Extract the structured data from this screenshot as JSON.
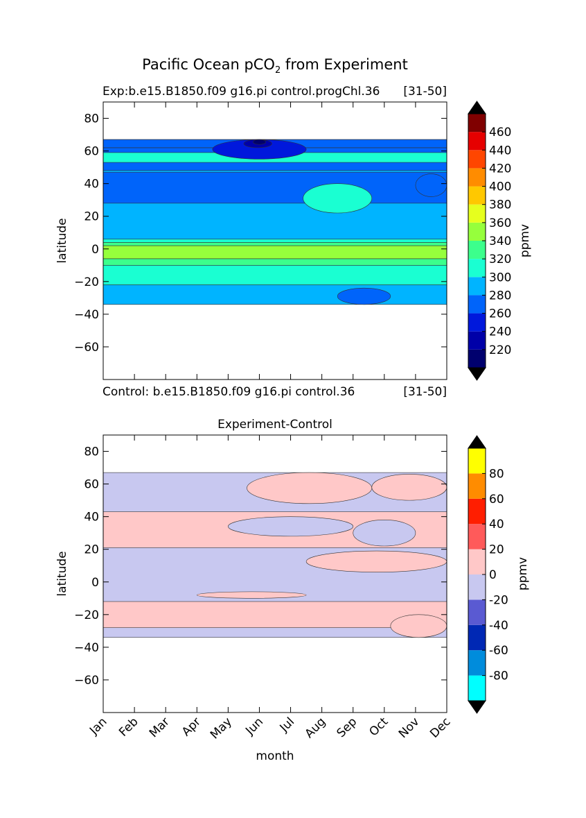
{
  "figure": {
    "title_main": "Pacific Ocean pCO",
    "title_sub": "2",
    "title_tail": " from Experiment"
  },
  "chart_data": [
    {
      "type": "heatmap",
      "id": "experiment",
      "title_left": "Exp:b.e15.B1850.f09 g16.pi control.progChl.36",
      "title_right": "[31-50]",
      "bottom_left": "Control: b.e15.B1850.f09 g16.pi control.36",
      "bottom_right": "[31-50]",
      "xlabel": "",
      "ylabel": "latitude",
      "xlim": [
        0,
        11
      ],
      "ylim": [
        -80,
        90
      ],
      "data_lat_range": [
        -34,
        67
      ],
      "yticks": [
        80,
        60,
        40,
        20,
        0,
        -20,
        -40,
        -60
      ],
      "ytick_labels": [
        "80",
        "60",
        "40",
        "20",
        "0",
        "−20",
        "−40",
        "−60"
      ],
      "colorbar": {
        "label": "ppmv",
        "extend": "both",
        "levels": [
          200,
          220,
          240,
          260,
          280,
          300,
          320,
          340,
          360,
          380,
          400,
          420,
          440,
          460,
          480
        ],
        "colors": [
          "#00006e",
          "#0000a8",
          "#0018dc",
          "#0064fa",
          "#00b4ff",
          "#1affd2",
          "#3cff8c",
          "#96ff3c",
          "#e6ff1e",
          "#ffc800",
          "#ff8c00",
          "#ff4600",
          "#e60000",
          "#800000"
        ],
        "under_color": "#000000",
        "over_color": "#000000",
        "tick_values": [
          220,
          240,
          260,
          280,
          300,
          320,
          340,
          360,
          380,
          400,
          420,
          440,
          460
        ],
        "tick_labels": [
          "220",
          "240",
          "260",
          "280",
          "300",
          "320",
          "340",
          "360",
          "380",
          "400",
          "420",
          "440",
          "460"
        ]
      },
      "bands": [
        {
          "lat_bottom": -34,
          "lat_top": 67,
          "level": 280
        },
        {
          "lat_bottom": 28,
          "lat_top": 47,
          "level": 260
        },
        {
          "lat_bottom": 48,
          "lat_top": 62,
          "level": 260
        },
        {
          "lat_bottom": 53,
          "lat_top": 59,
          "level": 300
        },
        {
          "lat_bottom": 62,
          "lat_top": 67,
          "level": 260
        },
        {
          "lat_bottom": -34,
          "lat_top": -22,
          "level": 280
        },
        {
          "lat_bottom": -22,
          "lat_top": -10,
          "level": 300
        },
        {
          "lat_bottom": -10,
          "lat_top": -6,
          "level": 320
        },
        {
          "lat_bottom": -6,
          "lat_top": 2,
          "level": 340
        },
        {
          "lat_bottom": 2,
          "lat_top": 4,
          "level": 320
        },
        {
          "lat_bottom": 4,
          "lat_top": 6,
          "level": 300
        }
      ],
      "features": [
        {
          "month_start": 3.5,
          "month_end": 6.5,
          "lat_bottom": 55,
          "lat_top": 67,
          "level": 240
        },
        {
          "month_start": 4.5,
          "month_end": 5.4,
          "lat_bottom": 62,
          "lat_top": 67,
          "level": 220
        },
        {
          "month_start": 4.8,
          "month_end": 5.2,
          "lat_bottom": 64,
          "lat_top": 67,
          "level": 200
        },
        {
          "month_start": 6.4,
          "month_end": 8.6,
          "lat_bottom": 22,
          "lat_top": 40,
          "level": 300
        },
        {
          "month_start": 7.5,
          "month_end": 9.2,
          "lat_bottom": -34,
          "lat_top": -24,
          "level": 260
        },
        {
          "month_start": 10.0,
          "month_end": 11.0,
          "lat_bottom": 32,
          "lat_top": 46,
          "level": 260
        }
      ]
    },
    {
      "type": "heatmap",
      "id": "difference",
      "title": "Experiment-Control",
      "xlabel": "month",
      "ylabel": "latitude",
      "xlim": [
        0,
        11
      ],
      "ylim": [
        -80,
        90
      ],
      "data_lat_range": [
        -34,
        67
      ],
      "categories": [
        "Jan",
        "Feb",
        "Mar",
        "Apr",
        "May",
        "Jun",
        "Jul",
        "Aug",
        "Sep",
        "Oct",
        "Nov",
        "Dec"
      ],
      "yticks": [
        80,
        60,
        40,
        20,
        0,
        -20,
        -40,
        -60
      ],
      "ytick_labels": [
        "80",
        "60",
        "40",
        "20",
        "0",
        "−20",
        "−40",
        "−60"
      ],
      "colorbar": {
        "label": "ppmv",
        "extend": "both",
        "levels": [
          -100,
          -80,
          -60,
          -40,
          -20,
          0,
          20,
          40,
          60,
          80,
          100
        ],
        "colors": [
          "#00ffff",
          "#008cdc",
          "#0028b4",
          "#5a5ad2",
          "#c8c8f0",
          "#ffc8c8",
          "#ff5a5a",
          "#ff1e00",
          "#ff8c00",
          "#ffff00"
        ],
        "under_color": "#000000",
        "over_color": "#000000",
        "tick_values": [
          -80,
          -60,
          -40,
          -20,
          0,
          20,
          40,
          60,
          80
        ],
        "tick_labels": [
          "-80",
          "-60",
          "-40",
          "-20",
          "0",
          "20",
          "40",
          "60",
          "80"
        ]
      },
      "bands": [
        {
          "lat_bottom": -34,
          "lat_top": 67,
          "level": -10
        },
        {
          "lat_bottom": 21,
          "lat_top": 43,
          "level": 10
        },
        {
          "lat_bottom": -28,
          "lat_top": -12,
          "level": 10
        }
      ],
      "features": [
        {
          "month_start": 4.6,
          "month_end": 8.6,
          "lat_bottom": 48,
          "lat_top": 67,
          "level": 10
        },
        {
          "month_start": 8.6,
          "month_end": 11.0,
          "lat_bottom": 50,
          "lat_top": 66,
          "level": 10
        },
        {
          "month_start": 4.0,
          "month_end": 8.0,
          "lat_bottom": 28,
          "lat_top": 40,
          "level": -10
        },
        {
          "month_start": 8.0,
          "month_end": 10.0,
          "lat_bottom": 22,
          "lat_top": 38,
          "level": -10
        },
        {
          "month_start": 6.5,
          "month_end": 11.0,
          "lat_bottom": 6,
          "lat_top": 19,
          "level": 10
        },
        {
          "month_start": 3.0,
          "month_end": 6.5,
          "lat_bottom": -10,
          "lat_top": -6,
          "level": 10
        },
        {
          "month_start": 9.2,
          "month_end": 11.0,
          "lat_bottom": -34,
          "lat_top": -20,
          "level": 10
        }
      ]
    }
  ]
}
